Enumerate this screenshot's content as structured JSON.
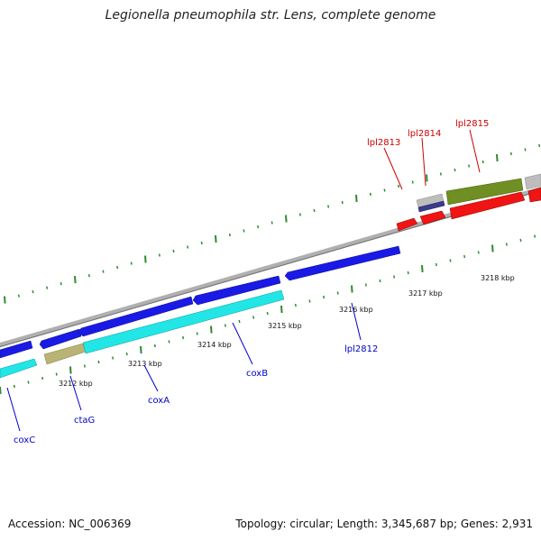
{
  "title": "Legionella pneumophila str. Lens, complete genome",
  "footer": {
    "accession": "Accession: NC_006369",
    "summary": "Topology: circular; Length: 3,345,687 bp; Genes: 2,931"
  },
  "colors": {
    "backbone": "#8c8c8c",
    "cds_forward": "#1a1ae6",
    "cds_reverse_red": "#f01414",
    "cyan_feature": "#22e6e6",
    "khaki_feature": "#b9b475",
    "olive_feature": "#6f8f22",
    "gray_feature": "#bdbdbd",
    "indigo_feature": "#3a3a8c",
    "ticks": "#2e8b2e",
    "label_blue": "#0000cc",
    "label_red": "#cc0000"
  },
  "scale_labels": [
    "3212 kbp",
    "3213 kbp",
    "3214 kbp",
    "3215 kbp",
    "3216 kbp",
    "3217 kbp",
    "3218 kbp"
  ],
  "gene_labels": {
    "forward": [
      "coxC",
      "ctaG",
      "coxA",
      "coxB",
      "lpl2812"
    ],
    "reverse": [
      "lpl2813",
      "lpl2814",
      "lpl2815"
    ]
  }
}
